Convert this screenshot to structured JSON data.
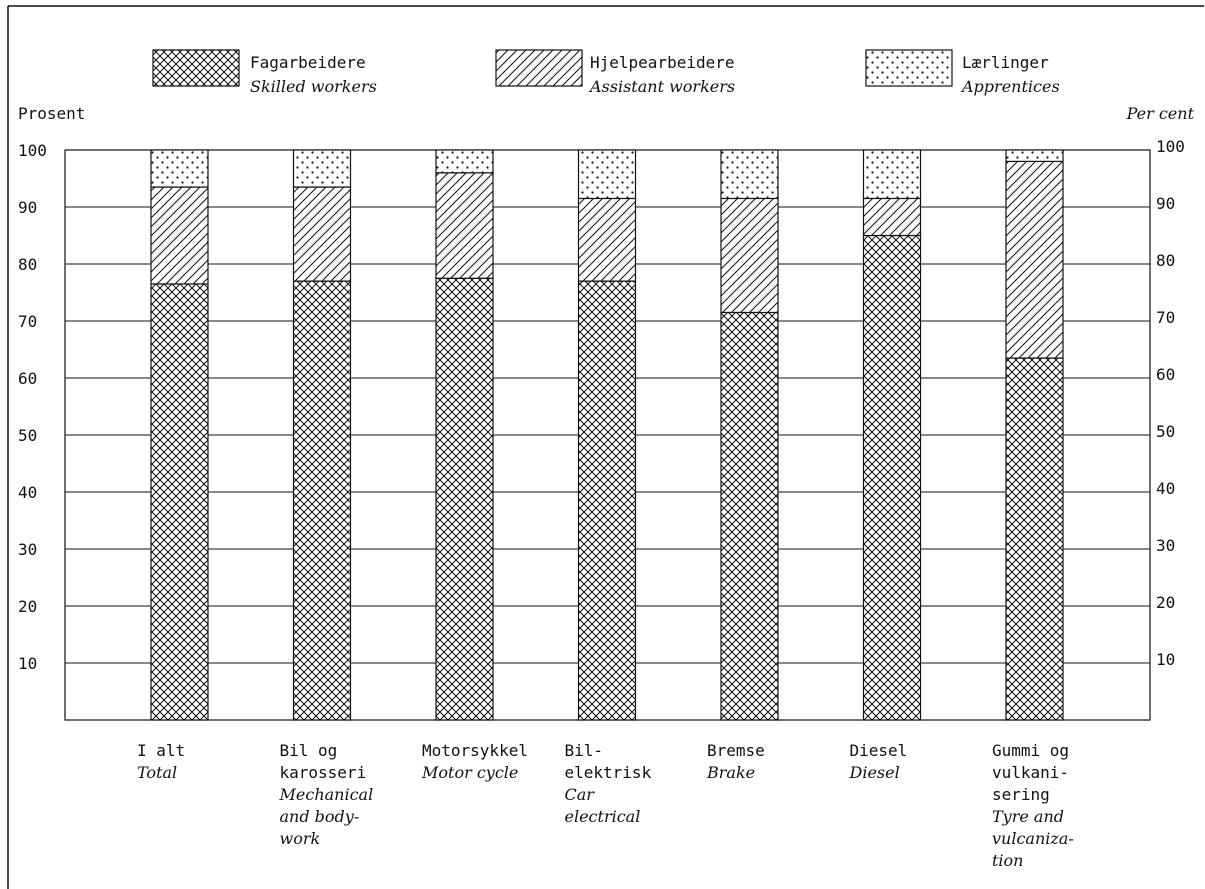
{
  "chart_data": {
    "type": "bar",
    "stacked": true,
    "ylabel_left": "Prosent",
    "ylabel_right": "Per cent",
    "ylim": [
      0,
      100
    ],
    "left_ticks": [
      "100",
      "90",
      "80",
      "70",
      "60",
      "50",
      "40",
      "30",
      "20",
      "10"
    ],
    "right_ticks": [
      "100",
      "90",
      "80",
      "70",
      "60",
      "50",
      "40",
      "30",
      "20",
      "10"
    ],
    "grid": true,
    "legend_position": "top",
    "categories": [
      {
        "no": [
          "I alt"
        ],
        "en": [
          "Total"
        ]
      },
      {
        "no": [
          "Bil og",
          "karosseri"
        ],
        "en": [
          "Mechanical",
          "and body-",
          "work"
        ]
      },
      {
        "no": [
          "Motorsykkel"
        ],
        "en": [
          "Motor cycle"
        ]
      },
      {
        "no": [
          "Bil-",
          "elektrisk"
        ],
        "en": [
          "Car",
          "electrical"
        ]
      },
      {
        "no": [
          "Bremse"
        ],
        "en": [
          "Brake"
        ]
      },
      {
        "no": [
          "Diesel"
        ],
        "en": [
          "Diesel"
        ]
      },
      {
        "no": [
          "Gummi og",
          "vulkani-",
          "sering"
        ],
        "en": [
          "Tyre and",
          "vulcaniza-",
          "tion"
        ]
      }
    ],
    "series": [
      {
        "name": "Fagarbeidere",
        "name_en": "Skilled workers",
        "pattern": "crosshatch",
        "values": [
          76.5,
          77,
          77.5,
          77,
          71.5,
          85,
          63.5
        ]
      },
      {
        "name": "Hjelpearbeidere",
        "name_en": "Assistant workers",
        "pattern": "diagonal",
        "values": [
          17,
          16.5,
          18.5,
          14.5,
          20,
          6.5,
          34.5
        ]
      },
      {
        "name": "Lærlinger",
        "name_en": "Apprentices",
        "pattern": "dots",
        "values": [
          6.5,
          6.5,
          4,
          8.5,
          8.5,
          8.5,
          2
        ]
      }
    ]
  }
}
